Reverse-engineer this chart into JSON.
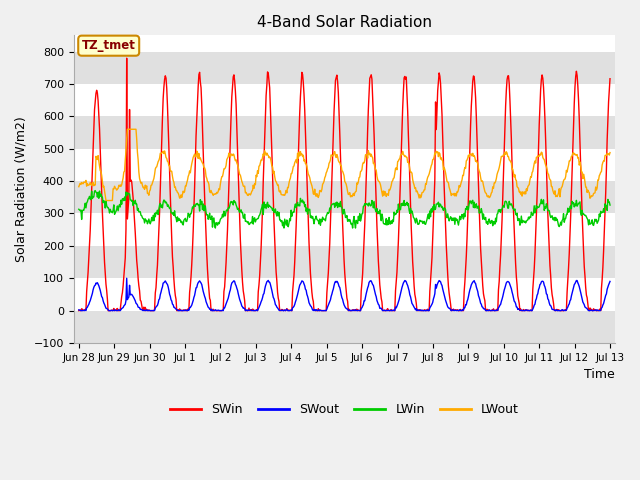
{
  "title": "4-Band Solar Radiation",
  "ylabel": "Solar Radiation (W/m2)",
  "xlabel": "Time",
  "ylim": [
    -100,
    850
  ],
  "yticks": [
    -100,
    0,
    100,
    200,
    300,
    400,
    500,
    600,
    700,
    800
  ],
  "bg_color": "#f0f0f0",
  "plot_bg_light": "#ffffff",
  "plot_bg_dark": "#e0e0e0",
  "series": [
    "SWin",
    "SWout",
    "LWin",
    "LWout"
  ],
  "colors": [
    "#ff0000",
    "#0000ff",
    "#00cc00",
    "#ffaa00"
  ],
  "annotation_text": "TZ_tmet",
  "annotation_bg": "#ffffcc",
  "annotation_border": "#cc8800",
  "tick_labels": [
    "Jun 28",
    "Jun 29",
    "Jun 30",
    "Jul 1",
    "Jul 2",
    "Jul 3",
    "Jul 4",
    "Jul 5",
    "Jul 6",
    "Jul 7",
    "Jul 8",
    "Jul 9",
    "Jul 10",
    "Jul 11",
    "Jul 12",
    "Jul 13"
  ]
}
